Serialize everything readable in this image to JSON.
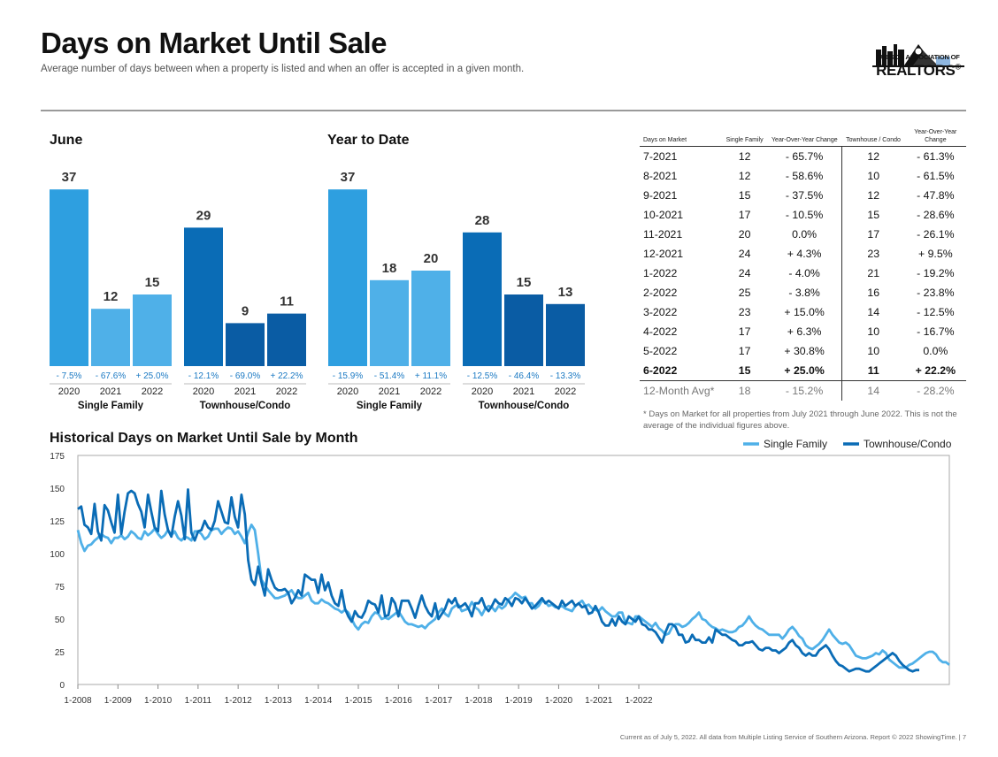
{
  "header": {
    "title": "Days on Market Until Sale",
    "subtitle": "Average number of days between when a property is listed and when an offer is accepted in a given month."
  },
  "logo": {
    "line1": "TUCSON ASSOCIATION OF",
    "line2": "REALTORS",
    "mark": "®"
  },
  "colors": {
    "sf_2020": "#2E9FE0",
    "sf_later": "#4FB0E8",
    "th": "#0A6CB6",
    "th_dark": "#0A5CA4",
    "change_text": "#1A79C3"
  },
  "chart_data": [
    {
      "type": "bar",
      "title": "June",
      "groups": [
        {
          "label": "Single Family",
          "categories": [
            "2020",
            "2021",
            "2022"
          ],
          "values": [
            37,
            12,
            15
          ],
          "changes": [
            "- 7.5%",
            "- 67.6%",
            "+ 25.0%"
          ]
        },
        {
          "label": "Townhouse/Condo",
          "categories": [
            "2020",
            "2021",
            "2022"
          ],
          "values": [
            29,
            9,
            11
          ],
          "changes": [
            "- 12.1%",
            "- 69.0%",
            "+ 22.2%"
          ]
        }
      ]
    },
    {
      "type": "bar",
      "title": "Year to Date",
      "groups": [
        {
          "label": "Single Family",
          "categories": [
            "2020",
            "2021",
            "2022"
          ],
          "values": [
            37,
            18,
            20
          ],
          "changes": [
            "- 15.9%",
            "- 51.4%",
            "+ 11.1%"
          ]
        },
        {
          "label": "Townhouse/Condo",
          "categories": [
            "2020",
            "2021",
            "2022"
          ],
          "values": [
            28,
            15,
            13
          ],
          "changes": [
            "- 12.5%",
            "- 46.4%",
            "- 13.3%"
          ]
        }
      ]
    },
    {
      "type": "table",
      "headers": [
        "Days on Market",
        "Single Family",
        "Year-Over-Year Change",
        "Townhouse / Condo",
        "Year-Over-Year Change"
      ],
      "rows": [
        [
          "7-2021",
          "12",
          "- 65.7%",
          "12",
          "- 61.3%"
        ],
        [
          "8-2021",
          "12",
          "- 58.6%",
          "10",
          "- 61.5%"
        ],
        [
          "9-2021",
          "15",
          "- 37.5%",
          "12",
          "- 47.8%"
        ],
        [
          "10-2021",
          "17",
          "- 10.5%",
          "15",
          "- 28.6%"
        ],
        [
          "11-2021",
          "20",
          "0.0%",
          "17",
          "- 26.1%"
        ],
        [
          "12-2021",
          "24",
          "+ 4.3%",
          "23",
          "+ 9.5%"
        ],
        [
          "1-2022",
          "24",
          "- 4.0%",
          "21",
          "- 19.2%"
        ],
        [
          "2-2022",
          "25",
          "- 3.8%",
          "16",
          "- 23.8%"
        ],
        [
          "3-2022",
          "23",
          "+ 15.0%",
          "14",
          "- 12.5%"
        ],
        [
          "4-2022",
          "17",
          "+ 6.3%",
          "10",
          "- 16.7%"
        ],
        [
          "5-2022",
          "17",
          "+ 30.8%",
          "10",
          "0.0%"
        ],
        [
          "6-2022",
          "15",
          "+ 25.0%",
          "11",
          "+ 22.2%"
        ]
      ],
      "avg_row": [
        "12-Month Avg*",
        "18",
        "- 15.2%",
        "14",
        "- 28.2%"
      ],
      "footnote": "* Days on Market for all properties from July 2021 through June 2022. This is not the average of the individual figures above."
    },
    {
      "type": "line",
      "title": "Historical Days on Market Until Sale by Month",
      "x_start": "1-2008",
      "x_ticks": [
        "1-2008",
        "1-2009",
        "1-2010",
        "1-2011",
        "1-2012",
        "1-2013",
        "1-2014",
        "1-2015",
        "1-2016",
        "1-2017",
        "1-2018",
        "1-2019",
        "1-2020",
        "1-2021",
        "1-2022"
      ],
      "y_ticks": [
        0,
        25,
        50,
        75,
        100,
        125,
        150,
        175
      ],
      "ylim": [
        0,
        175
      ],
      "legend_position": "top-right",
      "series": [
        {
          "name": "Single Family",
          "color": "#4FB0E8",
          "values": [
            118,
            108,
            102,
            106,
            107,
            110,
            112,
            115,
            113,
            112,
            108,
            112,
            112,
            114,
            111,
            113,
            117,
            115,
            112,
            111,
            117,
            114,
            116,
            119,
            115,
            112,
            114,
            118,
            114,
            117,
            112,
            110,
            113,
            112,
            110,
            117,
            117,
            115,
            111,
            113,
            118,
            119,
            119,
            115,
            118,
            120,
            119,
            115,
            117,
            113,
            108,
            116,
            122,
            118,
            100,
            80,
            76,
            72,
            69,
            66,
            66,
            67,
            68,
            70,
            72,
            68,
            66,
            66,
            68,
            70,
            64,
            62,
            62,
            65,
            63,
            62,
            60,
            58,
            57,
            55,
            57,
            55,
            50,
            45,
            42,
            46,
            48,
            47,
            52,
            55,
            54,
            50,
            51,
            50,
            52,
            54,
            56,
            52,
            48,
            46,
            46,
            45,
            44,
            45,
            43,
            46,
            48,
            50,
            55,
            58,
            54,
            52,
            58,
            60,
            61,
            56,
            57,
            58,
            63,
            59,
            57,
            53,
            58,
            60,
            59,
            56,
            60,
            58,
            60,
            65,
            67,
            70,
            68,
            66,
            67,
            62,
            62,
            58,
            60,
            64,
            63,
            60,
            61,
            59,
            59,
            60,
            58,
            57,
            56,
            60,
            62,
            64,
            60,
            61,
            58,
            57,
            56,
            59,
            56,
            54,
            52,
            52,
            55,
            55,
            47,
            47,
            46,
            52,
            52,
            50,
            48,
            46,
            44,
            47,
            43,
            41,
            38,
            39,
            44,
            46,
            46,
            44,
            45,
            47,
            50,
            52,
            55,
            50,
            49,
            46,
            44,
            43,
            41,
            42,
            41,
            40,
            40,
            41,
            44,
            45,
            48,
            52,
            48,
            45,
            43,
            42,
            40,
            38,
            38,
            38,
            38,
            35,
            38,
            42,
            44,
            41,
            37,
            35,
            30,
            28,
            27,
            29,
            31,
            34,
            38,
            42,
            38,
            35,
            32,
            31,
            32,
            30,
            26,
            22,
            21,
            20,
            20,
            21,
            22,
            24,
            23,
            26,
            24,
            19,
            17,
            15,
            13,
            13,
            13,
            15,
            16,
            18,
            20,
            22,
            24,
            25,
            25,
            23,
            19,
            17,
            17,
            15
          ]
        },
        {
          "name": "Townhouse/Condo",
          "color": "#0A6CB6",
          "values": [
            134,
            136,
            122,
            120,
            115,
            138,
            117,
            110,
            137,
            133,
            124,
            116,
            145,
            115,
            132,
            146,
            148,
            146,
            138,
            132,
            120,
            145,
            132,
            120,
            117,
            148,
            130,
            118,
            113,
            128,
            140,
            129,
            111,
            149,
            116,
            110,
            117,
            118,
            125,
            120,
            118,
            125,
            140,
            132,
            124,
            123,
            143,
            128,
            120,
            145,
            130,
            95,
            80,
            76,
            90,
            78,
            68,
            88,
            80,
            74,
            72,
            72,
            73,
            70,
            62,
            66,
            72,
            68,
            84,
            82,
            80,
            80,
            70,
            84,
            72,
            78,
            68,
            62,
            60,
            72,
            58,
            52,
            48,
            56,
            52,
            51,
            56,
            64,
            62,
            61,
            55,
            68,
            52,
            53,
            66,
            62,
            52,
            64,
            64,
            64,
            58,
            51,
            60,
            68,
            60,
            55,
            52,
            62,
            50,
            54,
            58,
            65,
            62,
            66,
            59,
            60,
            62,
            58,
            52,
            62,
            62,
            66,
            59,
            56,
            60,
            65,
            62,
            61,
            66,
            64,
            60,
            66,
            65,
            62,
            66,
            62,
            58,
            60,
            63,
            66,
            62,
            64,
            62,
            60,
            58,
            64,
            60,
            62,
            64,
            60,
            62,
            59,
            60,
            54,
            55,
            60,
            55,
            48,
            45,
            45,
            50,
            45,
            52,
            48,
            46,
            52,
            50,
            48,
            52,
            46,
            45,
            42,
            42,
            40,
            36,
            32,
            40,
            46,
            46,
            44,
            38,
            38,
            32,
            33,
            38,
            34,
            34,
            32,
            32,
            36,
            32,
            42,
            40,
            38,
            38,
            36,
            34,
            33,
            30,
            30,
            32,
            32,
            33,
            30,
            27,
            26,
            28,
            28,
            26,
            26,
            24,
            26,
            28,
            32,
            34,
            30,
            28,
            24,
            22,
            24,
            22,
            22,
            26,
            28,
            30,
            27,
            22,
            18,
            15,
            14,
            12,
            10,
            11,
            12,
            12,
            11,
            10,
            10,
            12,
            14,
            16,
            18,
            20,
            22,
            24,
            22,
            18,
            15,
            13,
            11,
            10,
            11,
            11
          ]
        }
      ]
    }
  ],
  "footer": "Current as of July 5, 2022. All data from Multiple Listing Service of Southern Arizona. Report © 2022 ShowingTime.  |  7"
}
